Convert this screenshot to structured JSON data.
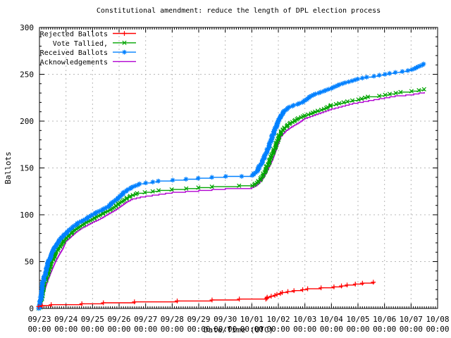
{
  "window": {
    "background": "#ffffff"
  },
  "chart_data": {
    "type": "line",
    "title": "Constitutional amendment: reduce the length of DPL election process",
    "xlabel": "Date/Time (UTC)",
    "ylabel": "Ballots",
    "ylim": [
      0,
      300
    ],
    "y_ticks": [
      0,
      50,
      100,
      150,
      200,
      250,
      300
    ],
    "y_minor_step": 10,
    "x_tick_dates": [
      "09/23",
      "09/24",
      "09/25",
      "09/26",
      "09/27",
      "09/28",
      "09/29",
      "09/30",
      "10/01",
      "10/02",
      "10/03",
      "10/04",
      "10/05",
      "10/06",
      "10/07",
      "10/08"
    ],
    "x_tick_sub_label": "00:00",
    "x_range_days": [
      0,
      15
    ],
    "x_minor_per_day": 12,
    "grid": true,
    "grid_color": "#b8b8b8",
    "legend_position": "top-left",
    "series": [
      {
        "name": "Rejected Ballots",
        "color": "#ff0000",
        "marker": "plus",
        "points": [
          [
            0,
            2
          ],
          [
            0.1,
            3
          ],
          [
            0.45,
            4
          ],
          [
            1.6,
            5
          ],
          [
            2.4,
            6
          ],
          [
            3.6,
            7
          ],
          [
            5.2,
            8
          ],
          [
            6.5,
            9
          ],
          [
            7.5,
            10
          ],
          [
            8.5,
            10
          ],
          [
            8.55,
            11
          ],
          [
            8.6,
            12
          ],
          [
            8.7,
            13
          ],
          [
            8.85,
            14
          ],
          [
            8.95,
            15
          ],
          [
            9.05,
            16
          ],
          [
            9.15,
            17
          ],
          [
            9.35,
            18
          ],
          [
            9.6,
            19
          ],
          [
            9.9,
            20
          ],
          [
            10.1,
            21
          ],
          [
            10.6,
            22
          ],
          [
            11.1,
            23
          ],
          [
            11.4,
            24
          ],
          [
            11.6,
            25
          ],
          [
            11.9,
            26
          ],
          [
            12.2,
            27
          ],
          [
            12.6,
            28
          ]
        ]
      },
      {
        "name": "Vote Tallied,",
        "color": "#00a400",
        "marker": "cross",
        "points": [
          [
            0,
            0
          ],
          [
            0.04,
            6
          ],
          [
            0.08,
            12
          ],
          [
            0.13,
            19
          ],
          [
            0.19,
            26
          ],
          [
            0.26,
            33
          ],
          [
            0.34,
            40
          ],
          [
            0.43,
            47
          ],
          [
            0.53,
            54
          ],
          [
            0.64,
            60
          ],
          [
            0.75,
            65
          ],
          [
            0.87,
            70
          ],
          [
            1,
            75
          ],
          [
            1.15,
            79
          ],
          [
            1.3,
            83
          ],
          [
            1.5,
            87
          ],
          [
            1.7,
            91
          ],
          [
            1.9,
            94
          ],
          [
            2.1,
            97
          ],
          [
            2.3,
            100
          ],
          [
            2.5,
            103
          ],
          [
            2.7,
            106
          ],
          [
            2.9,
            110
          ],
          [
            3.1,
            114
          ],
          [
            3.3,
            118
          ],
          [
            3.5,
            121
          ],
          [
            3.7,
            123
          ],
          [
            4,
            124
          ],
          [
            4.5,
            126
          ],
          [
            5,
            127
          ],
          [
            5.5,
            128
          ],
          [
            6,
            129
          ],
          [
            6.5,
            130
          ],
          [
            7.5,
            131
          ],
          [
            8,
            131
          ],
          [
            8.15,
            133
          ],
          [
            8.3,
            137
          ],
          [
            8.45,
            144
          ],
          [
            8.6,
            153
          ],
          [
            8.75,
            163
          ],
          [
            8.9,
            174
          ],
          [
            9,
            182
          ],
          [
            9.1,
            188
          ],
          [
            9.25,
            193
          ],
          [
            9.4,
            197
          ],
          [
            9.6,
            200
          ],
          [
            9.75,
            203
          ],
          [
            10,
            206
          ],
          [
            10.3,
            209
          ],
          [
            10.5,
            211
          ],
          [
            10.8,
            214
          ],
          [
            11,
            217
          ],
          [
            11.3,
            219
          ],
          [
            11.6,
            221
          ],
          [
            12,
            223
          ],
          [
            12.4,
            226
          ],
          [
            12.8,
            227
          ],
          [
            13.2,
            229
          ],
          [
            13.6,
            231
          ],
          [
            14,
            232
          ],
          [
            14.3,
            233
          ],
          [
            14.5,
            234
          ]
        ]
      },
      {
        "name": "Received Ballots",
        "color": "#0080ff",
        "marker": "asterisk",
        "points": [
          [
            0,
            0
          ],
          [
            0.03,
            8
          ],
          [
            0.06,
            14
          ],
          [
            0.1,
            22
          ],
          [
            0.15,
            30
          ],
          [
            0.21,
            37
          ],
          [
            0.28,
            44
          ],
          [
            0.36,
            51
          ],
          [
            0.45,
            57
          ],
          [
            0.55,
            63
          ],
          [
            0.65,
            68
          ],
          [
            0.75,
            72
          ],
          [
            0.85,
            76
          ],
          [
            1,
            80
          ],
          [
            1.15,
            84
          ],
          [
            1.3,
            88
          ],
          [
            1.5,
            92
          ],
          [
            1.7,
            95
          ],
          [
            1.9,
            98
          ],
          [
            2,
            100
          ],
          [
            2.2,
            103
          ],
          [
            2.4,
            106
          ],
          [
            2.6,
            109
          ],
          [
            2.8,
            114
          ],
          [
            3,
            119
          ],
          [
            3.2,
            124
          ],
          [
            3.4,
            128
          ],
          [
            3.6,
            131
          ],
          [
            3.8,
            133
          ],
          [
            4,
            134
          ],
          [
            4.5,
            136
          ],
          [
            5,
            137
          ],
          [
            5.5,
            138
          ],
          [
            6,
            139
          ],
          [
            6.5,
            140
          ],
          [
            7,
            141
          ],
          [
            7.6,
            141
          ],
          [
            8,
            142
          ],
          [
            8.1,
            144
          ],
          [
            8.2,
            147
          ],
          [
            8.3,
            152
          ],
          [
            8.45,
            160
          ],
          [
            8.6,
            170
          ],
          [
            8.75,
            182
          ],
          [
            8.9,
            193
          ],
          [
            9,
            200
          ],
          [
            9.1,
            206
          ],
          [
            9.2,
            210
          ],
          [
            9.35,
            214
          ],
          [
            9.5,
            216
          ],
          [
            9.7,
            218
          ],
          [
            9.9,
            220
          ],
          [
            10.1,
            224
          ],
          [
            10.3,
            228
          ],
          [
            10.5,
            230
          ],
          [
            10.8,
            233
          ],
          [
            11,
            235
          ],
          [
            11.3,
            239
          ],
          [
            11.5,
            241
          ],
          [
            11.8,
            243
          ],
          [
            12,
            245
          ],
          [
            12.3,
            247
          ],
          [
            12.6,
            248
          ],
          [
            13,
            250
          ],
          [
            13.4,
            252
          ],
          [
            13.7,
            253
          ],
          [
            14,
            255
          ],
          [
            14.2,
            257
          ],
          [
            14.35,
            259
          ],
          [
            14.5,
            261
          ]
        ]
      },
      {
        "name": "Acknowledgements",
        "color": "#b000d0",
        "marker": "none",
        "points": [
          [
            0,
            0
          ],
          [
            0.05,
            5
          ],
          [
            0.1,
            10
          ],
          [
            0.2,
            20
          ],
          [
            0.3,
            29
          ],
          [
            0.45,
            40
          ],
          [
            0.6,
            50
          ],
          [
            0.75,
            58
          ],
          [
            0.9,
            65
          ],
          [
            1,
            72
          ],
          [
            1.2,
            77
          ],
          [
            1.4,
            82
          ],
          [
            1.6,
            86
          ],
          [
            1.8,
            89
          ],
          [
            2,
            92
          ],
          [
            2.3,
            96
          ],
          [
            2.6,
            101
          ],
          [
            2.9,
            106
          ],
          [
            3.1,
            110
          ],
          [
            3.3,
            114
          ],
          [
            3.5,
            117
          ],
          [
            3.8,
            119
          ],
          [
            4,
            120
          ],
          [
            4.5,
            122
          ],
          [
            5,
            124
          ],
          [
            5.5,
            125
          ],
          [
            6,
            126
          ],
          [
            6.5,
            127
          ],
          [
            7,
            128
          ],
          [
            8,
            129
          ],
          [
            8.2,
            132
          ],
          [
            8.4,
            138
          ],
          [
            8.6,
            148
          ],
          [
            8.8,
            160
          ],
          [
            9,
            176
          ],
          [
            9.1,
            184
          ],
          [
            9.3,
            190
          ],
          [
            9.5,
            194
          ],
          [
            9.8,
            199
          ],
          [
            10,
            203
          ],
          [
            10.4,
            207
          ],
          [
            10.7,
            210
          ],
          [
            11,
            213
          ],
          [
            11.4,
            216
          ],
          [
            11.8,
            219
          ],
          [
            12.2,
            221
          ],
          [
            12.6,
            223
          ],
          [
            13,
            225
          ],
          [
            13.4,
            227
          ],
          [
            13.8,
            228
          ],
          [
            14.1,
            229
          ],
          [
            14.5,
            231
          ]
        ]
      }
    ]
  }
}
